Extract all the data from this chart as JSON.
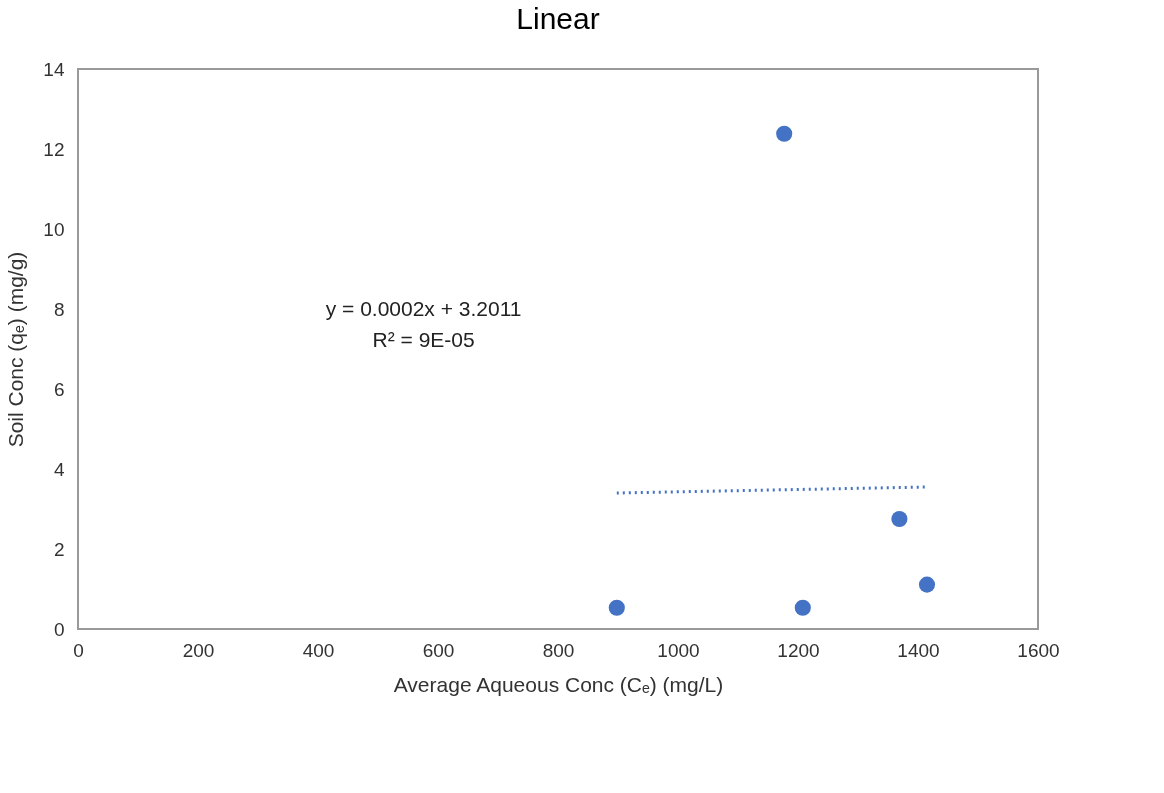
{
  "chart_data": {
    "type": "scatter",
    "title": "Linear",
    "xlabel": "Average Aqueous Conc (Cₑ)  (mg/L)",
    "ylabel": "Soil Conc (qₑ) (mg/g)",
    "x": [
      898,
      1177,
      1208,
      1369,
      1415
    ],
    "series": [
      {
        "type": "scatter",
        "color": "#4472c4",
        "values": [
          0.53,
          12.38,
          0.53,
          2.75,
          1.11
        ],
        "marker": "circle"
      },
      {
        "type": "line",
        "color": "#4472c4",
        "x": [
          898,
          1415
        ],
        "values": [
          3.4,
          3.55
        ],
        "line_style": "dotted",
        "marker": "none"
      }
    ],
    "xlim": [
      0,
      1600
    ],
    "xticks": [
      0,
      200,
      400,
      600,
      800,
      1000,
      1200,
      1400,
      1600
    ],
    "ylim": [
      0,
      14
    ],
    "yticks": [
      0,
      2,
      4,
      6,
      8,
      10,
      12,
      14
    ],
    "grid": false,
    "annotations": [
      "y = 0.0002x + 3.2011",
      "R² = 9E-05"
    ]
  }
}
